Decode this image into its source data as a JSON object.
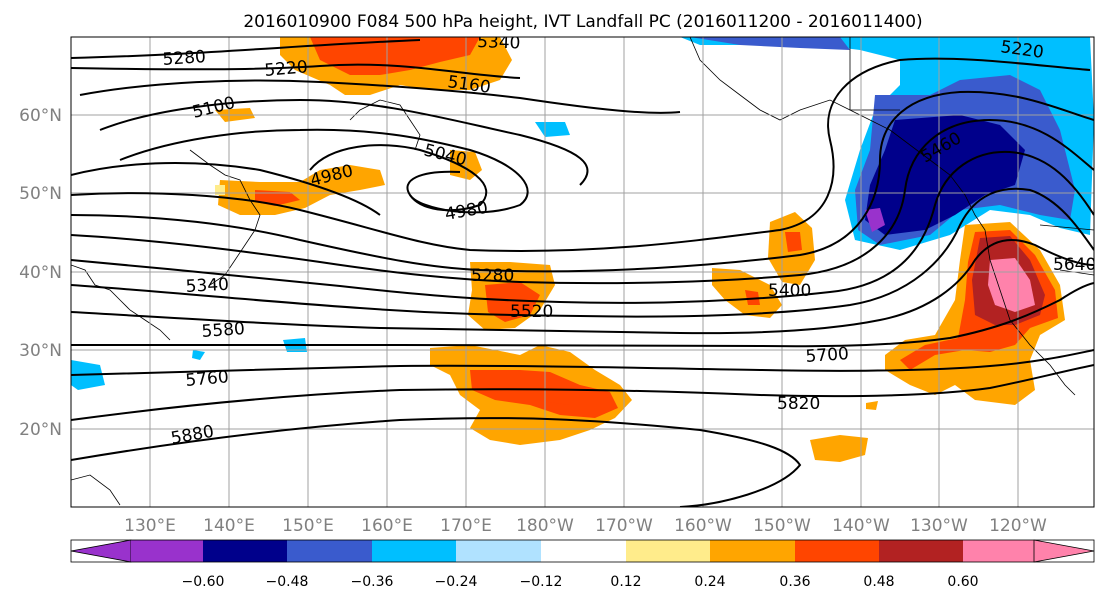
{
  "title": "2016010900 F084 500 hPa height, IVT Landfall PC (2016011200 - 2016011400)",
  "map": {
    "lon_labels": [
      "130°E",
      "140°E",
      "150°E",
      "160°E",
      "170°E",
      "180°W",
      "170°W",
      "160°W",
      "150°W",
      "140°W",
      "130°W",
      "120°W"
    ],
    "lat_labels": [
      "20°N",
      "30°N",
      "40°N",
      "50°N",
      "60°N"
    ],
    "contour_labels": [
      "5280",
      "5220",
      "5160",
      "5340",
      "5100",
      "5040",
      "4980",
      "4980",
      "5280",
      "5340",
      "5520",
      "5580",
      "5760",
      "5700",
      "5880",
      "5820",
      "5400",
      "5460",
      "5640",
      "5220"
    ],
    "colors": {
      "contour": "#000000",
      "land_outline": "#000000",
      "gridline": "#a0a0a0",
      "tick_label": "#808080"
    }
  },
  "colorbar": {
    "tick_labels": [
      "−0.60",
      "−0.48",
      "−0.36",
      "−0.24",
      "−0.12",
      "0.12",
      "0.24",
      "0.36",
      "0.48",
      "0.60"
    ],
    "colors": [
      "#9932CC",
      "#00008B",
      "#3A5BCD",
      "#00BFFF",
      "#B0E2FF",
      "#FFFFFF",
      "#FFEC8B",
      "#FFA500",
      "#FF4500",
      "#B22222",
      "#FF82AB"
    ]
  }
}
